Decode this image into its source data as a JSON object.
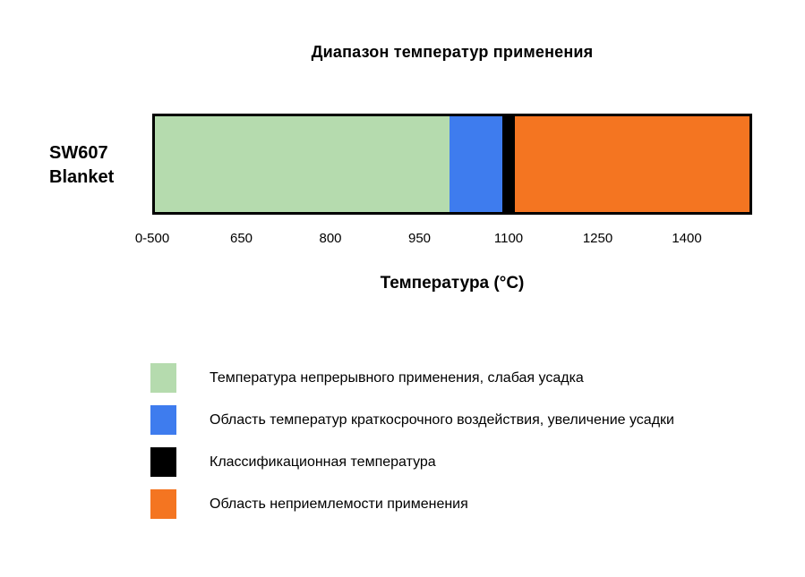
{
  "title": "Диапазон температур применения",
  "row_label": {
    "line1": "SW607",
    "line2": "Blanket"
  },
  "x_axis_label": "Температура (°C)",
  "legend": [
    {
      "color": "#b5dbae",
      "label": "Температура непрерывного применения, слабая усадка"
    },
    {
      "color": "#3e7cee",
      "label": "Область температур краткосрочного воздействия, увеличение усадки"
    },
    {
      "color": "#000000",
      "label": "Классификационная температура"
    },
    {
      "color": "#f47521",
      "label": "Область неприемлемости применения"
    }
  ],
  "chart_data": {
    "type": "bar",
    "orientation": "horizontal",
    "title": "Диапазон температур применения",
    "categories": [
      "SW607 Blanket"
    ],
    "xlabel": "Температура (°C)",
    "axis_min": 500,
    "axis_max": 1510,
    "grid": false,
    "legend_position": "bottom-left",
    "classification_temperature": 1100,
    "ticks": [
      {
        "value": 500,
        "label": "0-500"
      },
      {
        "value": 650,
        "label": "650"
      },
      {
        "value": 800,
        "label": "800"
      },
      {
        "value": 950,
        "label": "950"
      },
      {
        "value": 1100,
        "label": "1100"
      },
      {
        "value": 1250,
        "label": "1250"
      },
      {
        "value": 1400,
        "label": "1400"
      }
    ],
    "segments": [
      {
        "name": "Температура непрерывного применения, слабая усадка",
        "from": 500,
        "to": 1000,
        "color": "#b5dbae"
      },
      {
        "name": "Область температур краткосрочного воздействия, увеличение усадки",
        "from": 1000,
        "to": 1090,
        "color": "#3e7cee"
      },
      {
        "name": "Классификационная температура",
        "from": 1090,
        "to": 1112,
        "color": "#000000"
      },
      {
        "name": "Область неприемлемости применения",
        "from": 1112,
        "to": 1510,
        "color": "#f47521"
      }
    ]
  }
}
